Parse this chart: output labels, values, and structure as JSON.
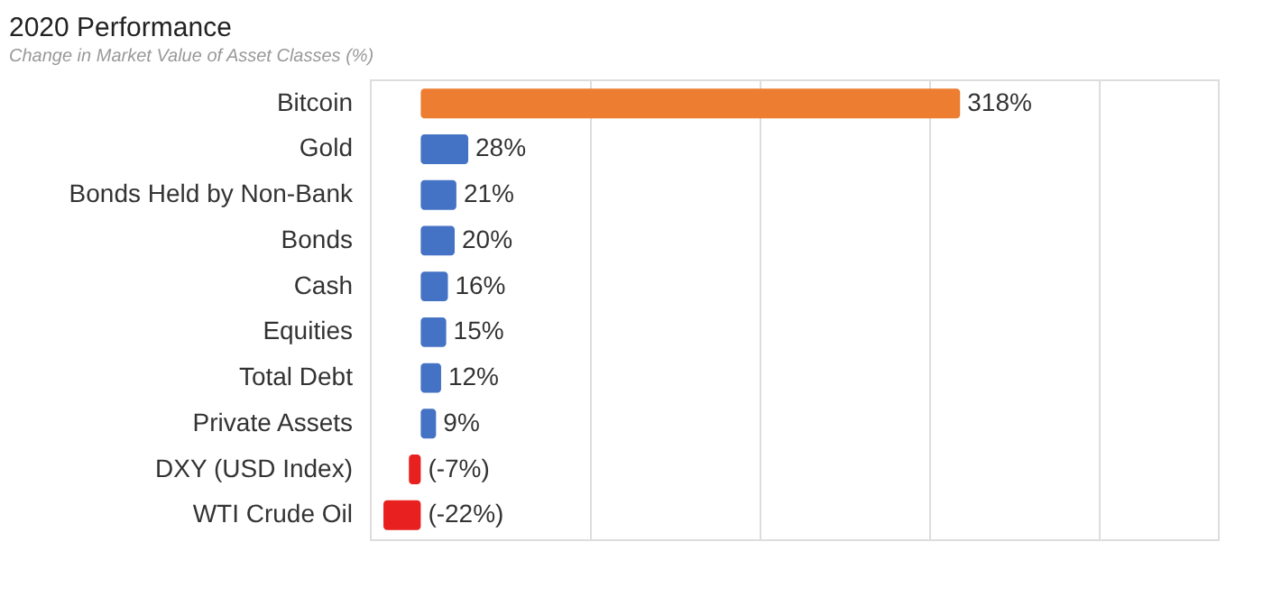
{
  "chart_data": {
    "type": "bar",
    "orientation": "horizontal",
    "title": "2020 Performance",
    "subtitle": "Change in Market Value of Asset Classes (%)",
    "categories": [
      "Bitcoin",
      "Gold",
      "Bonds Held by Non-Bank",
      "Bonds",
      "Cash",
      "Equities",
      "Total Debt",
      "Private Assets",
      "DXY (USD Index)",
      "WTI Crude Oil"
    ],
    "values": [
      318,
      28,
      21,
      20,
      16,
      15,
      12,
      9,
      -7,
      -22
    ],
    "colors": [
      "#ed7d31",
      "#4472c4",
      "#4472c4",
      "#4472c4",
      "#4472c4",
      "#4472c4",
      "#4472c4",
      "#4472c4",
      "#e8201f",
      "#e8201f"
    ],
    "value_labels": [
      "318%",
      "28%",
      "21%",
      "20%",
      "16%",
      "15%",
      "12%",
      "9%",
      "(-7%)",
      "(-22%)"
    ],
    "xlim": [
      -30,
      470
    ],
    "xticks": [
      {
        "value": 100,
        "label": null
      },
      {
        "value": 200,
        "label": null
      },
      {
        "value": 300,
        "label": null
      },
      {
        "value": 400,
        "label": null
      }
    ],
    "grid": "x",
    "tick_labels": "y"
  }
}
